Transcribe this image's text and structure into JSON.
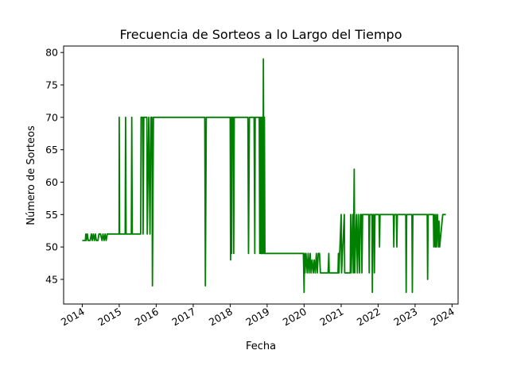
{
  "chart_data": {
    "type": "line",
    "title": "Frecuencia de Sorteos a lo Largo del Tiempo",
    "xlabel": "Fecha",
    "ylabel": "Número de Sorteos",
    "xlim": [
      "2013-07-01",
      "2024-03-01"
    ],
    "ylim": [
      41.2,
      81.0
    ],
    "x_ticks": [
      "2014-01-01",
      "2015-01-01",
      "2016-01-01",
      "2017-01-01",
      "2018-01-01",
      "2019-01-01",
      "2020-01-01",
      "2021-01-01",
      "2022-01-01",
      "2023-01-01",
      "2024-01-01"
    ],
    "x_tick_labels": [
      "2014",
      "2015",
      "2016",
      "2017",
      "2018",
      "2019",
      "2020",
      "2021",
      "2022",
      "2023",
      "2024"
    ],
    "y_ticks": [
      45,
      50,
      55,
      60,
      65,
      70,
      75,
      80
    ],
    "grid": false,
    "legend": "none",
    "series": [
      {
        "color": "#008000",
        "points": [
          [
            "2014-01-01",
            51
          ],
          [
            "2014-02-01",
            51
          ],
          [
            "2014-02-05",
            52
          ],
          [
            "2014-02-10",
            51
          ],
          [
            "2014-02-20",
            52
          ],
          [
            "2014-03-01",
            51
          ],
          [
            "2014-03-20",
            51
          ],
          [
            "2014-04-01",
            52
          ],
          [
            "2014-04-10",
            51
          ],
          [
            "2014-04-20",
            52
          ],
          [
            "2014-05-01",
            51
          ],
          [
            "2014-05-10",
            52
          ],
          [
            "2014-05-20",
            51
          ],
          [
            "2014-06-05",
            51
          ],
          [
            "2014-06-15",
            52
          ],
          [
            "2014-07-01",
            52
          ],
          [
            "2014-07-15",
            51
          ],
          [
            "2014-07-25",
            52
          ],
          [
            "2014-08-05",
            51
          ],
          [
            "2014-08-15",
            52
          ],
          [
            "2014-08-25",
            51
          ],
          [
            "2014-09-05",
            52
          ],
          [
            "2014-09-20",
            52
          ],
          [
            "2014-10-15",
            52
          ],
          [
            "2014-12-31",
            52
          ],
          [
            "2015-01-01",
            70
          ],
          [
            "2015-01-05",
            52
          ],
          [
            "2015-03-01",
            52
          ],
          [
            "2015-03-05",
            70
          ],
          [
            "2015-03-10",
            52
          ],
          [
            "2015-05-01",
            52
          ],
          [
            "2015-05-05",
            70
          ],
          [
            "2015-05-10",
            52
          ],
          [
            "2015-08-01",
            52
          ],
          [
            "2015-08-05",
            70
          ],
          [
            "2015-08-20",
            70
          ],
          [
            "2015-08-25",
            52
          ],
          [
            "2015-09-01",
            70
          ],
          [
            "2015-10-01",
            70
          ],
          [
            "2015-10-05",
            52
          ],
          [
            "2015-10-20",
            70
          ],
          [
            "2015-11-01",
            52
          ],
          [
            "2015-11-10",
            70
          ],
          [
            "2015-11-20",
            70
          ],
          [
            "2015-11-25",
            44
          ],
          [
            "2015-12-05",
            70
          ],
          [
            "2016-06-01",
            70
          ],
          [
            "2017-01-01",
            70
          ],
          [
            "2017-04-25",
            70
          ],
          [
            "2017-05-01",
            44
          ],
          [
            "2017-05-10",
            70
          ],
          [
            "2018-01-01",
            70
          ],
          [
            "2018-01-05",
            48
          ],
          [
            "2018-01-10",
            70
          ],
          [
            "2018-01-15",
            49
          ],
          [
            "2018-01-20",
            70
          ],
          [
            "2018-02-01",
            70
          ],
          [
            "2018-02-05",
            49
          ],
          [
            "2018-02-10",
            70
          ],
          [
            "2018-06-25",
            70
          ],
          [
            "2018-07-01",
            49
          ],
          [
            "2018-07-10",
            70
          ],
          [
            "2018-08-25",
            70
          ],
          [
            "2018-09-01",
            49
          ],
          [
            "2018-09-05",
            70
          ],
          [
            "2018-10-15",
            70
          ],
          [
            "2018-10-20",
            49
          ],
          [
            "2018-10-25",
            70
          ],
          [
            "2018-11-01",
            49
          ],
          [
            "2018-11-05",
            70
          ],
          [
            "2018-11-10",
            49
          ],
          [
            "2018-11-15",
            70
          ],
          [
            "2018-11-20",
            49
          ],
          [
            "2018-11-25",
            79
          ],
          [
            "2018-12-01",
            49
          ],
          [
            "2018-12-05",
            70
          ],
          [
            "2018-12-10",
            49
          ],
          [
            "2019-01-01",
            49
          ],
          [
            "2019-12-25",
            49
          ],
          [
            "2020-01-01",
            43
          ],
          [
            "2020-01-05",
            49
          ],
          [
            "2020-01-10",
            46
          ],
          [
            "2020-01-20",
            49
          ],
          [
            "2020-02-01",
            46
          ],
          [
            "2020-02-10",
            49
          ],
          [
            "2020-02-20",
            46
          ],
          [
            "2020-03-01",
            49
          ],
          [
            "2020-03-10",
            46
          ],
          [
            "2020-03-20",
            48
          ],
          [
            "2020-04-01",
            46
          ],
          [
            "2020-04-10",
            48
          ],
          [
            "2020-04-20",
            46
          ],
          [
            "2020-05-01",
            49
          ],
          [
            "2020-05-10",
            46
          ],
          [
            "2020-05-20",
            49
          ],
          [
            "2020-06-01",
            49
          ],
          [
            "2020-06-10",
            46
          ],
          [
            "2020-08-25",
            46
          ],
          [
            "2020-09-01",
            49
          ],
          [
            "2020-09-05",
            46
          ],
          [
            "2020-12-01",
            46
          ],
          [
            "2020-12-05",
            49
          ],
          [
            "2020-12-10",
            46
          ],
          [
            "2021-01-01",
            55
          ],
          [
            "2021-01-05",
            46
          ],
          [
            "2021-02-01",
            55
          ],
          [
            "2021-02-05",
            46
          ],
          [
            "2021-04-01",
            46
          ],
          [
            "2021-04-05",
            55
          ],
          [
            "2021-04-10",
            46
          ],
          [
            "2021-04-25",
            55
          ],
          [
            "2021-05-01",
            46
          ],
          [
            "2021-05-10",
            62
          ],
          [
            "2021-05-15",
            46
          ],
          [
            "2021-06-01",
            55
          ],
          [
            "2021-06-10",
            46
          ],
          [
            "2021-06-20",
            55
          ],
          [
            "2021-07-01",
            46
          ],
          [
            "2021-07-10",
            55
          ],
          [
            "2021-07-20",
            55
          ],
          [
            "2021-07-25",
            46
          ],
          [
            "2021-08-01",
            55
          ],
          [
            "2021-10-01",
            55
          ],
          [
            "2021-10-05",
            46
          ],
          [
            "2021-10-10",
            55
          ],
          [
            "2021-11-01",
            55
          ],
          [
            "2021-11-05",
            43
          ],
          [
            "2021-11-10",
            55
          ],
          [
            "2021-11-20",
            55
          ],
          [
            "2021-11-25",
            46
          ],
          [
            "2021-12-01",
            55
          ],
          [
            "2022-01-10",
            55
          ],
          [
            "2022-01-15",
            50
          ],
          [
            "2022-01-20",
            55
          ],
          [
            "2022-02-01",
            55
          ],
          [
            "2022-06-01",
            55
          ],
          [
            "2022-06-05",
            50
          ],
          [
            "2022-06-10",
            55
          ],
          [
            "2022-07-01",
            55
          ],
          [
            "2022-07-05",
            50
          ],
          [
            "2022-07-10",
            55
          ],
          [
            "2022-10-01",
            55
          ],
          [
            "2022-10-05",
            43
          ],
          [
            "2022-10-10",
            55
          ],
          [
            "2022-12-01",
            55
          ],
          [
            "2022-12-05",
            43
          ],
          [
            "2022-12-10",
            55
          ],
          [
            "2023-05-01",
            55
          ],
          [
            "2023-05-05",
            45
          ],
          [
            "2023-05-10",
            55
          ],
          [
            "2023-07-01",
            55
          ],
          [
            "2023-07-05",
            50
          ],
          [
            "2023-07-10",
            55
          ],
          [
            "2023-07-20",
            50
          ],
          [
            "2023-07-25",
            55
          ],
          [
            "2023-08-01",
            50
          ],
          [
            "2023-08-10",
            55
          ],
          [
            "2023-08-20",
            50
          ],
          [
            "2023-08-25",
            54
          ],
          [
            "2023-09-01",
            50
          ],
          [
            "2023-10-01",
            55
          ],
          [
            "2023-11-01",
            55
          ]
        ]
      }
    ]
  }
}
